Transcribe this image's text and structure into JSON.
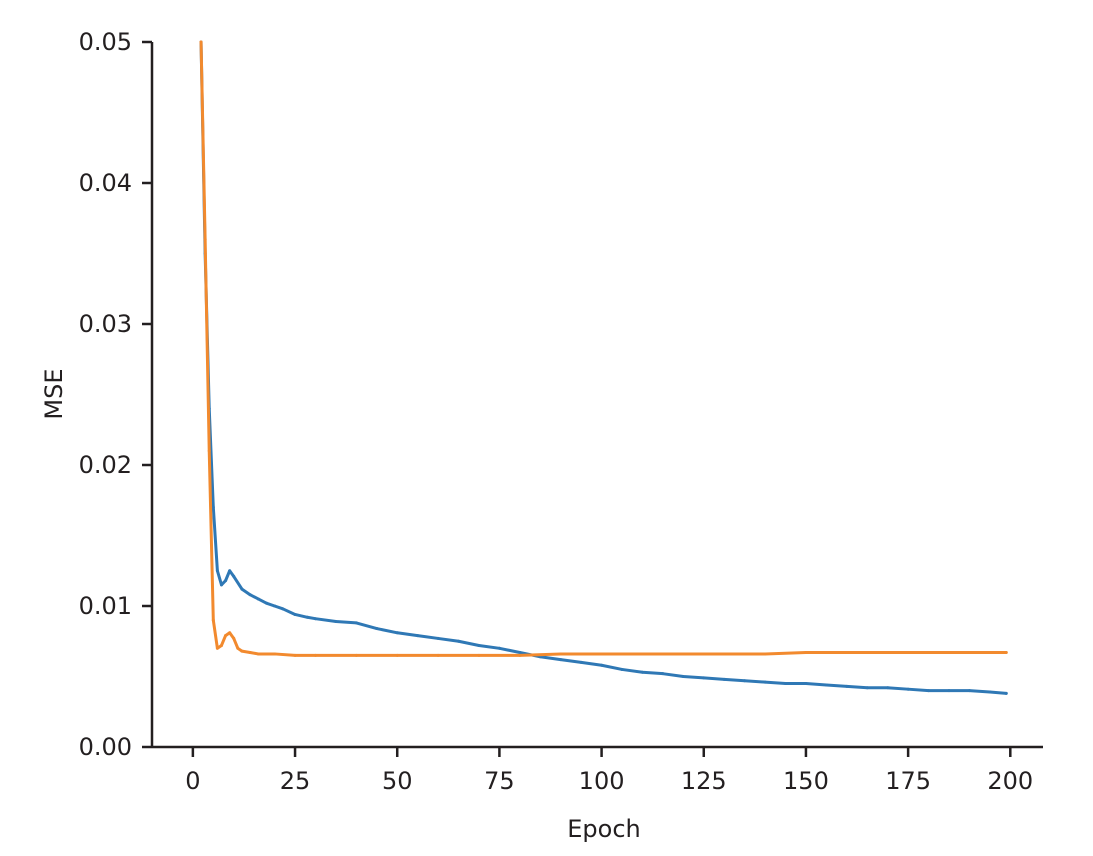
{
  "chart_data": {
    "type": "line",
    "xlabel": "Epoch",
    "ylabel": "MSE",
    "xlim": [
      -10,
      208
    ],
    "ylim": [
      0,
      0.05
    ],
    "x_ticks": [
      0,
      25,
      50,
      75,
      100,
      125,
      150,
      175,
      200
    ],
    "x_tick_labels": [
      "0",
      "25",
      "50",
      "75",
      "100",
      "125",
      "150",
      "175",
      "200"
    ],
    "y_ticks": [
      0,
      0.01,
      0.02,
      0.03,
      0.04,
      0.05
    ],
    "y_tick_labels": [
      "0.00",
      "0.01",
      "0.02",
      "0.03",
      "0.04",
      "0.05"
    ],
    "grid": false,
    "legend": "none",
    "colors": {
      "series_1": "#2f78b5",
      "series_2": "#f28a2e",
      "axis": "#231f20"
    },
    "series": [
      {
        "color": "#2f78b5",
        "x": [
          2,
          3,
          4,
          5,
          6,
          7,
          8,
          9,
          10,
          12,
          14,
          16,
          18,
          20,
          22,
          25,
          28,
          30,
          35,
          40,
          45,
          50,
          55,
          60,
          65,
          70,
          75,
          80,
          85,
          90,
          95,
          100,
          105,
          110,
          115,
          120,
          125,
          130,
          135,
          140,
          145,
          150,
          155,
          160,
          165,
          170,
          175,
          180,
          185,
          190,
          195,
          199
        ],
        "values": [
          0.05,
          0.035,
          0.024,
          0.017,
          0.0125,
          0.0115,
          0.0118,
          0.0125,
          0.0121,
          0.0112,
          0.0108,
          0.0105,
          0.0102,
          0.01,
          0.0098,
          0.0094,
          0.0092,
          0.0091,
          0.0089,
          0.0088,
          0.0084,
          0.0081,
          0.0079,
          0.0077,
          0.0075,
          0.0072,
          0.007,
          0.0067,
          0.0064,
          0.0062,
          0.006,
          0.0058,
          0.0055,
          0.0053,
          0.0052,
          0.005,
          0.0049,
          0.0048,
          0.0047,
          0.0046,
          0.0045,
          0.0045,
          0.0044,
          0.0043,
          0.0042,
          0.0042,
          0.0041,
          0.004,
          0.004,
          0.004,
          0.0039,
          0.0038
        ]
      },
      {
        "color": "#f28a2e",
        "x": [
          2,
          3,
          4,
          5,
          6,
          7,
          8,
          9,
          10,
          11,
          12,
          14,
          16,
          18,
          20,
          25,
          30,
          40,
          50,
          60,
          70,
          80,
          90,
          100,
          110,
          120,
          130,
          140,
          150,
          160,
          170,
          180,
          190,
          199
        ],
        "values": [
          0.05,
          0.036,
          0.021,
          0.009,
          0.007,
          0.0072,
          0.0079,
          0.0081,
          0.0077,
          0.007,
          0.0068,
          0.0067,
          0.0066,
          0.0066,
          0.0066,
          0.0065,
          0.0065,
          0.0065,
          0.0065,
          0.0065,
          0.0065,
          0.0065,
          0.0066,
          0.0066,
          0.0066,
          0.0066,
          0.0066,
          0.0066,
          0.0067,
          0.0067,
          0.0067,
          0.0067,
          0.0067,
          0.0067
        ]
      }
    ]
  }
}
